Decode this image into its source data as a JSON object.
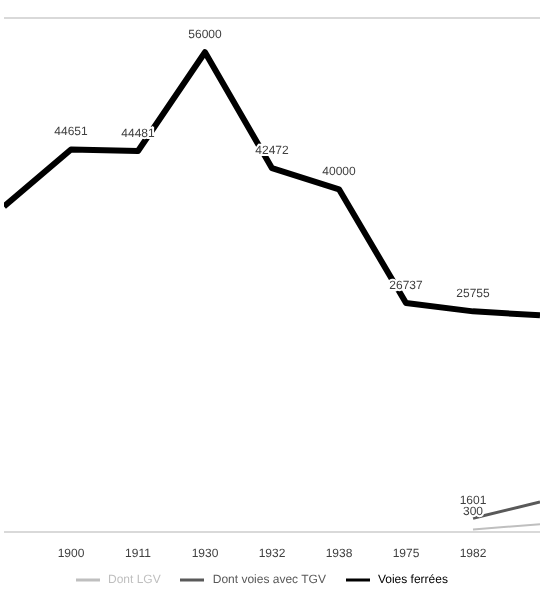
{
  "chart_data": {
    "type": "line",
    "categories": [
      null,
      "1900",
      "1911",
      "1930",
      "1932",
      "1938",
      "1975",
      "1982",
      null
    ],
    "series": [
      {
        "name": "Voies ferrées",
        "color": "#000000",
        "values": [
          38000,
          44651,
          44481,
          56000,
          42472,
          40000,
          26737,
          25755,
          25300
        ],
        "value_labels": [
          null,
          "44651",
          "44481",
          "56000",
          "42472",
          "40000",
          "26737",
          "25755",
          null
        ]
      },
      {
        "name": "Dont LGV",
        "color": "#bfbfbf",
        "values": [
          null,
          null,
          null,
          null,
          null,
          null,
          null,
          300,
          900
        ],
        "value_labels": [
          null,
          null,
          null,
          null,
          null,
          null,
          null,
          "300",
          null
        ]
      },
      {
        "name": "Dont voies avec TGV",
        "color": "#595959",
        "values": [
          null,
          null,
          null,
          null,
          null,
          null,
          null,
          1601,
          3500
        ],
        "value_labels": [
          null,
          null,
          null,
          null,
          null,
          null,
          null,
          "1601",
          null
        ]
      }
    ],
    "ylim": [
      0,
      60000
    ],
    "tick_labels": "x",
    "legend": "bottom",
    "marker": "none"
  }
}
